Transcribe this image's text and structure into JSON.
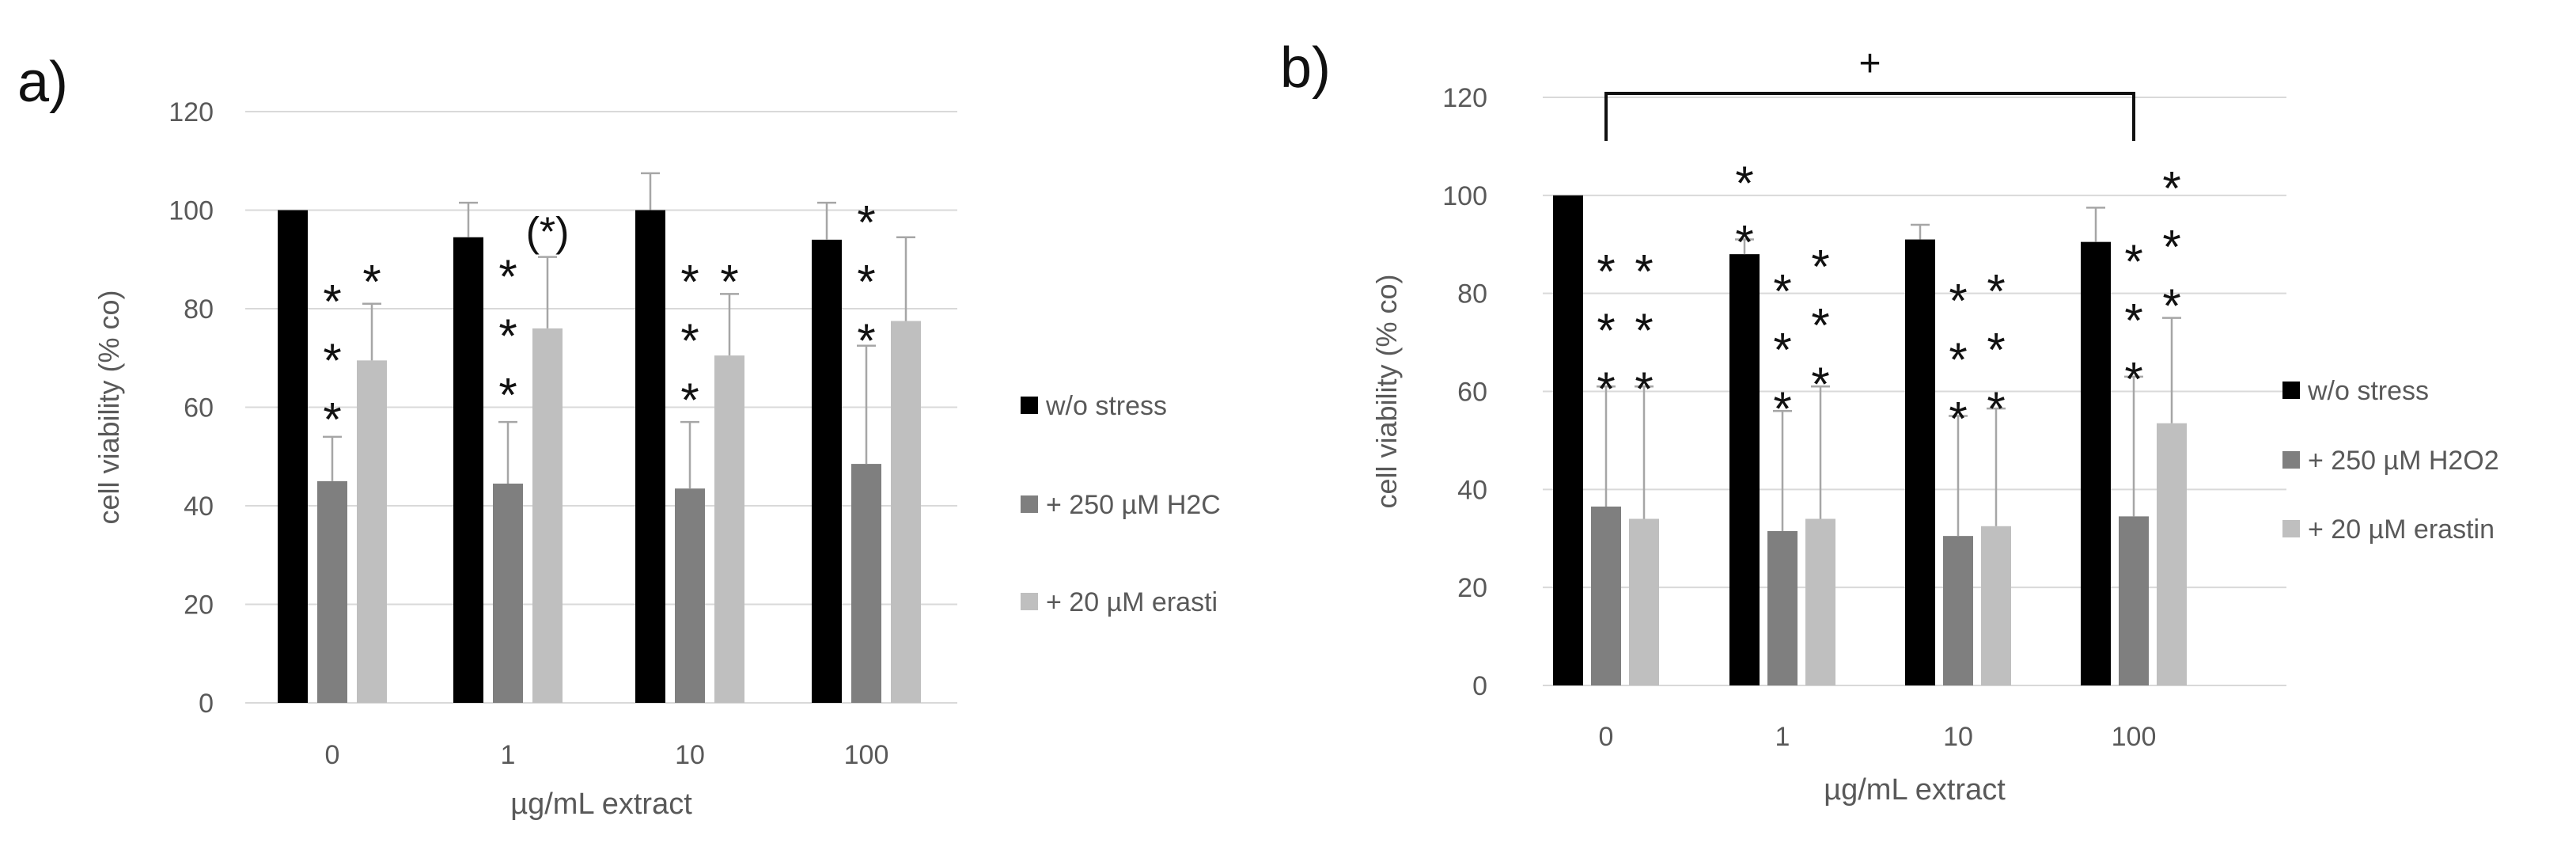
{
  "colors": {
    "black": "#000000",
    "dark_gray": "#7f7f7f",
    "light_gray": "#bfbfbf",
    "grid": "#d9d9d9",
    "text": "#595959",
    "label": "#111111"
  },
  "chart_data": [
    {
      "type": "bar",
      "panel_label": "a)",
      "title": "",
      "xlabel": "µg/mL extract",
      "ylabel": "cell viability (% co)",
      "ylim": [
        0,
        120
      ],
      "yticks": [
        "0",
        "20",
        "40",
        "60",
        "80",
        "100",
        "120"
      ],
      "grid": true,
      "legend_position": "right",
      "categories": [
        "0",
        "1",
        "10",
        "100"
      ],
      "series": [
        {
          "name": "w/o stress",
          "values": [
            100,
            94.5,
            100,
            94
          ],
          "errors": [
            0,
            7,
            7.5,
            7.5
          ],
          "color": "#000000"
        },
        {
          "name": "+ 250 µM H2C",
          "values": [
            45,
            44.5,
            43.5,
            48.5
          ],
          "errors": [
            9,
            12.5,
            13.5,
            24
          ],
          "color": "#7f7f7f"
        },
        {
          "name": "+ 20 µM erasti",
          "values": [
            69.5,
            76,
            70.5,
            77.5
          ],
          "errors": [
            11.5,
            14.5,
            12.5,
            17
          ],
          "color": "#bfbfbf"
        }
      ],
      "annotations": [
        {
          "text": "*",
          "category": 0,
          "series": 1,
          "y": 83
        },
        {
          "text": "*",
          "category": 0,
          "series": 1,
          "y": 71
        },
        {
          "text": "*",
          "category": 0,
          "series": 1,
          "y": 59
        },
        {
          "text": "*",
          "category": 0,
          "series": 2,
          "y": 87
        },
        {
          "text": "*",
          "category": 1,
          "series": 1,
          "y": 88
        },
        {
          "text": "*",
          "category": 1,
          "series": 1,
          "y": 76
        },
        {
          "text": "*",
          "category": 1,
          "series": 1,
          "y": 64
        },
        {
          "text": "(*)",
          "category": 1,
          "series": 2,
          "y": 95
        },
        {
          "text": "*",
          "category": 2,
          "series": 1,
          "y": 87
        },
        {
          "text": "*",
          "category": 2,
          "series": 1,
          "y": 75
        },
        {
          "text": "*",
          "category": 2,
          "series": 1,
          "y": 63
        },
        {
          "text": "*",
          "category": 2,
          "series": 2,
          "y": 87
        },
        {
          "text": "*",
          "category": 3,
          "series": 1,
          "y": 99
        },
        {
          "text": "*",
          "category": 3,
          "series": 1,
          "y": 87
        },
        {
          "text": "*",
          "category": 3,
          "series": 1,
          "y": 75
        }
      ],
      "bracket": null
    },
    {
      "type": "bar",
      "panel_label": "b)",
      "title": "",
      "xlabel": "µg/mL extract",
      "ylabel": "cell viability (% co)",
      "ylim": [
        0,
        120
      ],
      "yticks": [
        "0",
        "20",
        "40",
        "60",
        "80",
        "100",
        "120"
      ],
      "grid": true,
      "legend_position": "right",
      "categories": [
        "0",
        "1",
        "10",
        "100"
      ],
      "series": [
        {
          "name": "w/o stress",
          "values": [
            100,
            88,
            91,
            90.5
          ],
          "errors": [
            0,
            3,
            3,
            7
          ],
          "color": "#000000"
        },
        {
          "name": "+ 250 µM H2O2",
          "values": [
            36.5,
            31.5,
            30.5,
            34.5
          ],
          "errors": [
            24.5,
            24.5,
            24.5,
            28.5
          ],
          "color": "#7f7f7f"
        },
        {
          "name": "+ 20 µM erastin",
          "values": [
            34,
            34,
            32.5,
            53.5
          ],
          "errors": [
            27,
            27,
            24,
            21.5
          ],
          "color": "#bfbfbf"
        }
      ],
      "annotations": [
        {
          "text": "*",
          "category": 0,
          "series": 1,
          "y": 86
        },
        {
          "text": "*",
          "category": 0,
          "series": 1,
          "y": 74
        },
        {
          "text": "*",
          "category": 0,
          "series": 1,
          "y": 62
        },
        {
          "text": "*",
          "category": 0,
          "series": 2,
          "y": 86
        },
        {
          "text": "*",
          "category": 0,
          "series": 2,
          "y": 74
        },
        {
          "text": "*",
          "category": 0,
          "series": 2,
          "y": 62
        },
        {
          "text": "*",
          "category": 1,
          "series": 0,
          "y": 104
        },
        {
          "text": "*",
          "category": 1,
          "series": 0,
          "y": 92
        },
        {
          "text": "*",
          "category": 1,
          "series": 1,
          "y": 82
        },
        {
          "text": "*",
          "category": 1,
          "series": 1,
          "y": 70
        },
        {
          "text": "*",
          "category": 1,
          "series": 1,
          "y": 58
        },
        {
          "text": "*",
          "category": 1,
          "series": 2,
          "y": 87
        },
        {
          "text": "*",
          "category": 1,
          "series": 2,
          "y": 75
        },
        {
          "text": "*",
          "category": 1,
          "series": 2,
          "y": 63
        },
        {
          "text": "*",
          "category": 2,
          "series": 1,
          "y": 80
        },
        {
          "text": "*",
          "category": 2,
          "series": 1,
          "y": 68
        },
        {
          "text": "*",
          "category": 2,
          "series": 1,
          "y": 56
        },
        {
          "text": "*",
          "category": 2,
          "series": 2,
          "y": 82
        },
        {
          "text": "*",
          "category": 2,
          "series": 2,
          "y": 70
        },
        {
          "text": "*",
          "category": 2,
          "series": 2,
          "y": 58
        },
        {
          "text": "*",
          "category": 3,
          "series": 1,
          "y": 88
        },
        {
          "text": "*",
          "category": 3,
          "series": 1,
          "y": 76
        },
        {
          "text": "*",
          "category": 3,
          "series": 1,
          "y": 64
        },
        {
          "text": "*",
          "category": 3,
          "series": 2,
          "y": 103
        },
        {
          "text": "*",
          "category": 3,
          "series": 2,
          "y": 91
        },
        {
          "text": "*",
          "category": 3,
          "series": 2,
          "y": 79
        }
      ],
      "bracket": {
        "text": "+",
        "from_category": 0,
        "to_category": 3,
        "y": 120
      }
    }
  ]
}
